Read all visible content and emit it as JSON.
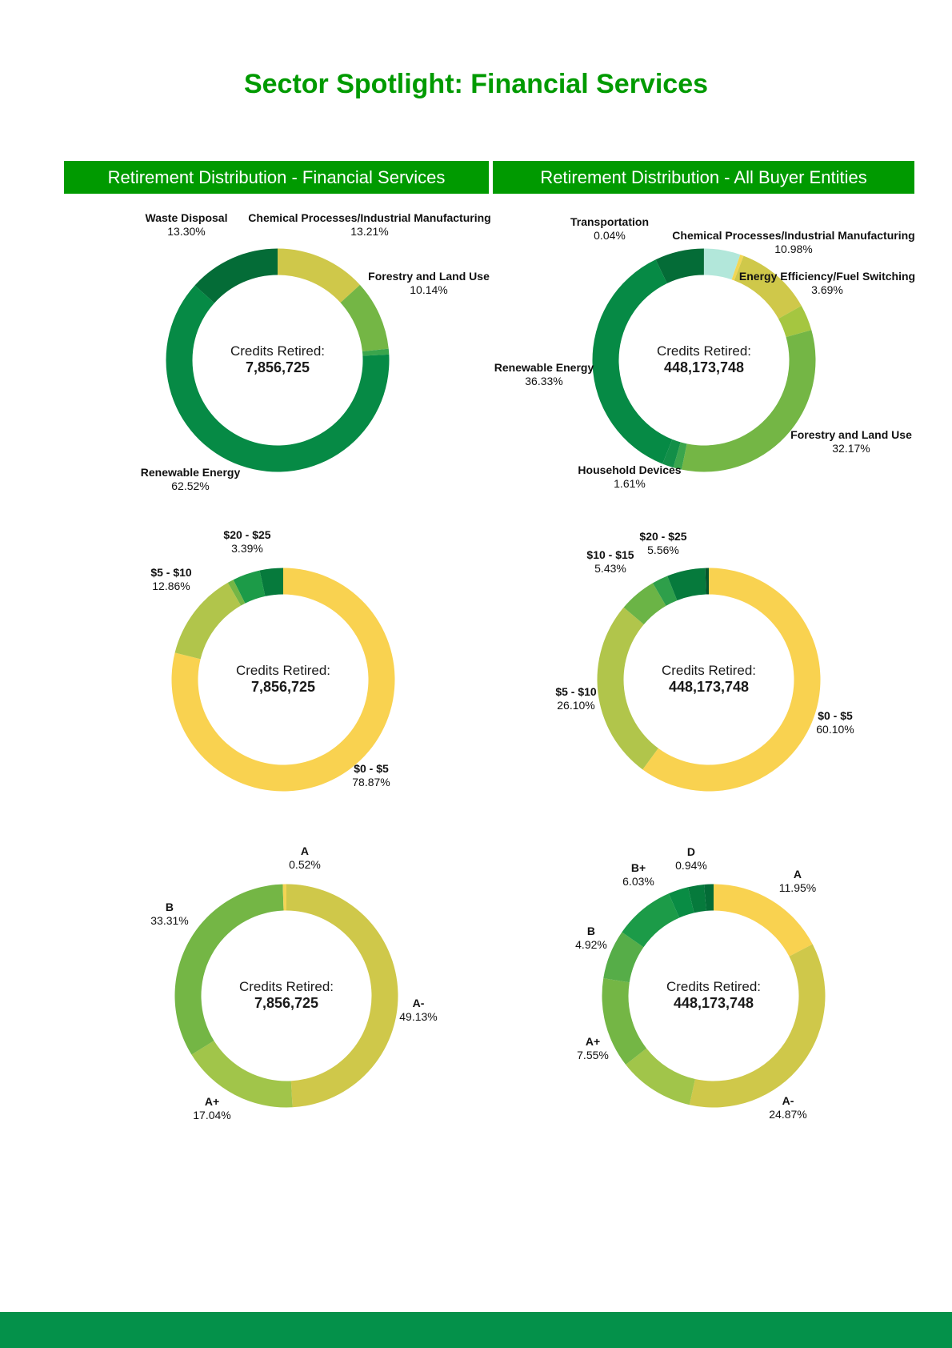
{
  "title": "Sector Spotlight: Financial Services",
  "headers": {
    "left": "Retirement Distribution - Financial Services",
    "right": "Retirement Distribution - All Buyer Entities"
  },
  "chart_data": [
    {
      "type": "pie",
      "id": "sector-fin",
      "center_label": "Credits Retired:",
      "center_value": "7,856,725",
      "slices": [
        {
          "label": "Chemical Processes/Industrial Manufacturing",
          "pct_text": "13.21%",
          "value": 13.21,
          "color": "#cfc84a"
        },
        {
          "label": "Forestry and Land Use",
          "pct_text": "10.14%",
          "value": 10.14,
          "color": "#74b645"
        },
        {
          "label": "",
          "pct_text": "",
          "value": 0.83,
          "color": "#3aa54c"
        },
        {
          "label": "Renewable Energy",
          "pct_text": "62.52%",
          "value": 62.52,
          "color": "#068a45"
        },
        {
          "label": "Waste Disposal",
          "pct_text": "13.30%",
          "value": 13.3,
          "color": "#046c37"
        }
      ]
    },
    {
      "type": "pie",
      "id": "sector-all",
      "center_label": "Credits Retired:",
      "center_value": "448,173,748",
      "slices": [
        {
          "label": "",
          "pct_text": "",
          "value": 5.2,
          "color": "#b2e7da"
        },
        {
          "label": "",
          "pct_text": "",
          "value": 0.5,
          "color": "#f2d654"
        },
        {
          "label": "Chemical Processes/Industrial Manufacturing",
          "pct_text": "10.98%",
          "value": 10.98,
          "color": "#cfc84a"
        },
        {
          "label": "Energy Efficiency/Fuel Switching",
          "pct_text": "3.69%",
          "value": 3.69,
          "color": "#a5c640"
        },
        {
          "label": "Forestry and Land Use",
          "pct_text": "32.17%",
          "value": 32.17,
          "color": "#74b645"
        },
        {
          "label": "",
          "pct_text": "",
          "value": 1.2,
          "color": "#3aa54c"
        },
        {
          "label": "Household Devices",
          "pct_text": "1.61%",
          "value": 1.61,
          "color": "#128f48"
        },
        {
          "label": "Renewable Energy",
          "pct_text": "36.33%",
          "value": 36.33,
          "color": "#068a45"
        },
        {
          "label": "",
          "pct_text": "",
          "value": 7.0,
          "color": "#046c37"
        },
        {
          "label": "Transportation",
          "pct_text": "0.04%",
          "value": 0.04,
          "color": "#045a2c"
        }
      ]
    },
    {
      "type": "pie",
      "id": "price-fin",
      "center_label": "Credits Retired:",
      "center_value": "7,856,725",
      "slices": [
        {
          "label": "$0 - $5",
          "pct_text": "78.87%",
          "value": 78.87,
          "color": "#f9d250"
        },
        {
          "label": "$5 - $10",
          "pct_text": "12.86%",
          "value": 12.86,
          "color": "#b1c54b"
        },
        {
          "label": "",
          "pct_text": "",
          "value": 0.9,
          "color": "#74b645"
        },
        {
          "label": "",
          "pct_text": "",
          "value": 3.98,
          "color": "#1c9b48"
        },
        {
          "label": "$20 - $25",
          "pct_text": "3.39%",
          "value": 3.39,
          "color": "#067a3c"
        }
      ]
    },
    {
      "type": "pie",
      "id": "price-all",
      "center_label": "Credits Retired:",
      "center_value": "448,173,748",
      "slices": [
        {
          "label": "$0 - $5",
          "pct_text": "60.10%",
          "value": 60.1,
          "color": "#f9d250"
        },
        {
          "label": "$5 - $10",
          "pct_text": "26.10%",
          "value": 26.1,
          "color": "#b1c54b"
        },
        {
          "label": "$10 - $15",
          "pct_text": "5.43%",
          "value": 5.43,
          "color": "#6bb446"
        },
        {
          "label": "",
          "pct_text": "",
          "value": 2.31,
          "color": "#2e9f4a"
        },
        {
          "label": "$20 - $25",
          "pct_text": "5.56%",
          "value": 5.56,
          "color": "#067a3c"
        },
        {
          "label": "",
          "pct_text": "",
          "value": 0.5,
          "color": "#04552b"
        }
      ]
    },
    {
      "type": "pie",
      "id": "rating-fin",
      "center_label": "Credits Retired:",
      "center_value": "7,856,725",
      "slices": [
        {
          "label": "A-",
          "pct_text": "49.13%",
          "value": 49.13,
          "color": "#cfc84a"
        },
        {
          "label": "A+",
          "pct_text": "17.04%",
          "value": 17.04,
          "color": "#a1c54a"
        },
        {
          "label": "B",
          "pct_text": "33.31%",
          "value": 33.31,
          "color": "#74b645"
        },
        {
          "label": "A",
          "pct_text": "0.52%",
          "value": 0.52,
          "color": "#f4d454"
        }
      ]
    },
    {
      "type": "pie",
      "id": "rating-all",
      "center_label": "Credits Retired:",
      "center_value": "448,173,748",
      "slices": [
        {
          "label": "A",
          "pct_text": "11.95%",
          "value": 11.95,
          "color": "#f9d250"
        },
        {
          "label": "A-",
          "pct_text": "24.87%",
          "value": 24.87,
          "color": "#cfc84a"
        },
        {
          "label": "A+",
          "pct_text": "7.55%",
          "value": 7.55,
          "color": "#a1c54a"
        },
        {
          "label": "",
          "pct_text": "",
          "value": 9.0,
          "color": "#74b645"
        },
        {
          "label": "B",
          "pct_text": "4.92%",
          "value": 4.92,
          "color": "#56ad48"
        },
        {
          "label": "B+",
          "pct_text": "6.03%",
          "value": 6.03,
          "color": "#1c9b48"
        },
        {
          "label": "",
          "pct_text": "",
          "value": 2.0,
          "color": "#098c44"
        },
        {
          "label": "",
          "pct_text": "",
          "value": 1.6,
          "color": "#067a3c"
        },
        {
          "label": "D",
          "pct_text": "0.94%",
          "value": 0.94,
          "color": "#046c37"
        }
      ]
    }
  ]
}
